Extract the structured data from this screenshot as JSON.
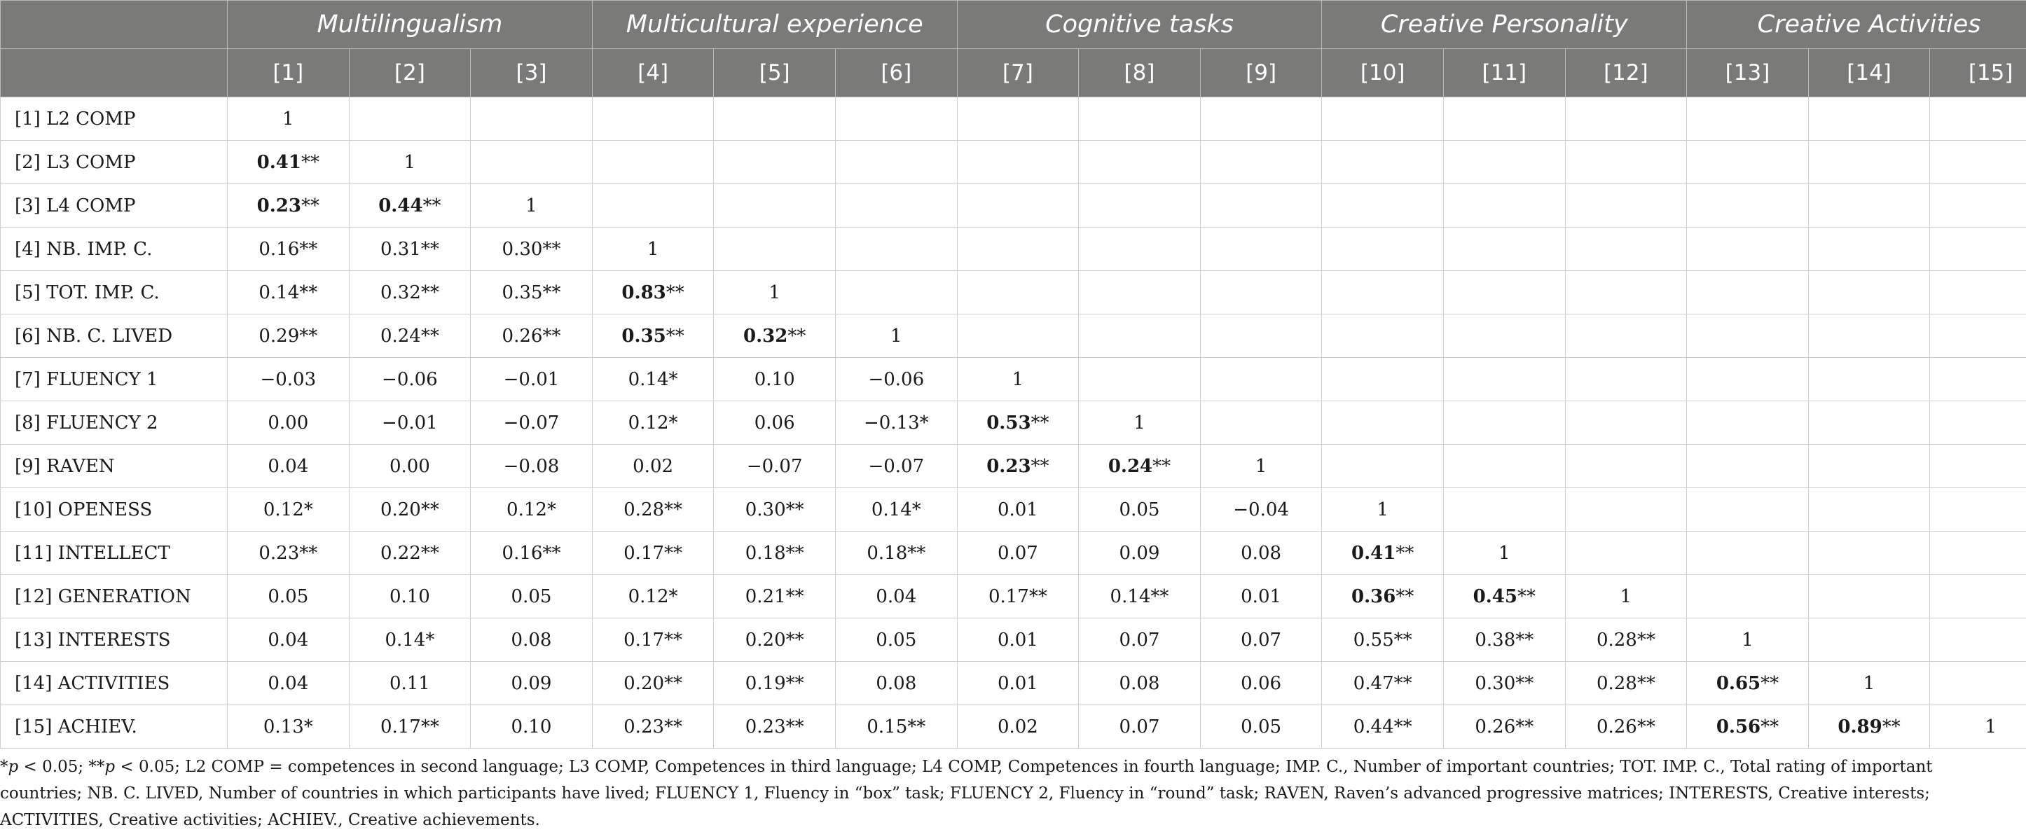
{
  "groups": [
    {
      "label": "Multilingualism",
      "span": 3
    },
    {
      "label": "Multicultural experience",
      "span": 3
    },
    {
      "label": "Cognitive tasks",
      "span": 3
    },
    {
      "label": "Creative Personality",
      "span": 3
    },
    {
      "label": "Creative Activities",
      "span": 3
    }
  ],
  "columns": [
    "[1]",
    "[2]",
    "[3]",
    "[4]",
    "[5]",
    "[6]",
    "[7]",
    "[8]",
    "[9]",
    "[10]",
    "[11]",
    "[12]",
    "[13]",
    "[14]",
    "[15]"
  ],
  "rows": [
    {
      "label": "[1] L2 COMP",
      "cells": [
        {
          "v": "1",
          "s": ""
        }
      ]
    },
    {
      "label": "[2] L3 COMP",
      "cells": [
        {
          "v": "0.41",
          "s": "**",
          "b": true
        },
        {
          "v": "1",
          "s": ""
        }
      ]
    },
    {
      "label": "[3] L4 COMP",
      "cells": [
        {
          "v": "0.23",
          "s": "**",
          "b": true
        },
        {
          "v": "0.44",
          "s": "**",
          "b": true
        },
        {
          "v": "1",
          "s": ""
        }
      ]
    },
    {
      "label": "[4] NB. IMP. C.",
      "cells": [
        {
          "v": "0.16",
          "s": "**"
        },
        {
          "v": "0.31",
          "s": "**"
        },
        {
          "v": "0.30",
          "s": "**"
        },
        {
          "v": "1",
          "s": ""
        }
      ]
    },
    {
      "label": "[5] TOT. IMP. C.",
      "cells": [
        {
          "v": "0.14",
          "s": "**"
        },
        {
          "v": "0.32",
          "s": "**"
        },
        {
          "v": "0.35",
          "s": "**"
        },
        {
          "v": "0.83",
          "s": "**",
          "b": true
        },
        {
          "v": "1",
          "s": ""
        }
      ]
    },
    {
      "label": "[6] NB. C. LIVED",
      "cells": [
        {
          "v": "0.29",
          "s": "**"
        },
        {
          "v": "0.24",
          "s": "**"
        },
        {
          "v": "0.26",
          "s": "**"
        },
        {
          "v": "0.35",
          "s": "**",
          "b": true
        },
        {
          "v": "0.32",
          "s": "**",
          "b": true
        },
        {
          "v": "1",
          "s": ""
        }
      ]
    },
    {
      "label": "[7] FLUENCY 1",
      "cells": [
        {
          "v": "−0.03",
          "s": ""
        },
        {
          "v": "−0.06",
          "s": ""
        },
        {
          "v": "−0.01",
          "s": ""
        },
        {
          "v": "0.14",
          "s": "*"
        },
        {
          "v": "0.10",
          "s": ""
        },
        {
          "v": "−0.06",
          "s": ""
        },
        {
          "v": "1",
          "s": ""
        }
      ]
    },
    {
      "label": "[8] FLUENCY 2",
      "cells": [
        {
          "v": "0.00",
          "s": ""
        },
        {
          "v": "−0.01",
          "s": ""
        },
        {
          "v": "−0.07",
          "s": ""
        },
        {
          "v": "0.12",
          "s": "*"
        },
        {
          "v": "0.06",
          "s": ""
        },
        {
          "v": "−0.13",
          "s": "*"
        },
        {
          "v": "0.53",
          "s": "**",
          "b": true
        },
        {
          "v": "1",
          "s": ""
        }
      ]
    },
    {
      "label": "[9] RAVEN",
      "cells": [
        {
          "v": "0.04",
          "s": ""
        },
        {
          "v": "0.00",
          "s": ""
        },
        {
          "v": "−0.08",
          "s": ""
        },
        {
          "v": "0.02",
          "s": ""
        },
        {
          "v": "−0.07",
          "s": ""
        },
        {
          "v": "−0.07",
          "s": ""
        },
        {
          "v": "0.23",
          "s": "**",
          "b": true
        },
        {
          "v": "0.24",
          "s": "**",
          "b": true
        },
        {
          "v": "1",
          "s": ""
        }
      ]
    },
    {
      "label": "[10] OPENESS",
      "cells": [
        {
          "v": "0.12",
          "s": "*"
        },
        {
          "v": "0.20",
          "s": "**"
        },
        {
          "v": "0.12",
          "s": "*"
        },
        {
          "v": "0.28",
          "s": "**"
        },
        {
          "v": "0.30",
          "s": "**"
        },
        {
          "v": "0.14",
          "s": "*"
        },
        {
          "v": "0.01",
          "s": ""
        },
        {
          "v": "0.05",
          "s": ""
        },
        {
          "v": "−0.04",
          "s": ""
        },
        {
          "v": "1",
          "s": ""
        }
      ]
    },
    {
      "label": "[11] INTELLECT",
      "cells": [
        {
          "v": "0.23",
          "s": "**"
        },
        {
          "v": "0.22",
          "s": "**"
        },
        {
          "v": "0.16",
          "s": "**"
        },
        {
          "v": "0.17",
          "s": "**"
        },
        {
          "v": "0.18",
          "s": "**"
        },
        {
          "v": "0.18",
          "s": "**"
        },
        {
          "v": "0.07",
          "s": ""
        },
        {
          "v": "0.09",
          "s": ""
        },
        {
          "v": "0.08",
          "s": ""
        },
        {
          "v": "0.41",
          "s": "**",
          "b": true
        },
        {
          "v": "1",
          "s": ""
        }
      ]
    },
    {
      "label": "[12] GENERATION",
      "cells": [
        {
          "v": "0.05",
          "s": ""
        },
        {
          "v": "0.10",
          "s": ""
        },
        {
          "v": "0.05",
          "s": ""
        },
        {
          "v": "0.12",
          "s": "*"
        },
        {
          "v": "0.21",
          "s": "**"
        },
        {
          "v": "0.04",
          "s": ""
        },
        {
          "v": "0.17",
          "s": "**"
        },
        {
          "v": "0.14",
          "s": "**"
        },
        {
          "v": "0.01",
          "s": ""
        },
        {
          "v": "0.36",
          "s": "**",
          "b": true
        },
        {
          "v": "0.45",
          "s": "**",
          "b": true
        },
        {
          "v": "1",
          "s": ""
        }
      ]
    },
    {
      "label": "[13] INTERESTS",
      "cells": [
        {
          "v": "0.04",
          "s": ""
        },
        {
          "v": "0.14",
          "s": "*"
        },
        {
          "v": "0.08",
          "s": ""
        },
        {
          "v": "0.17",
          "s": "**"
        },
        {
          "v": "0.20",
          "s": "**"
        },
        {
          "v": "0.05",
          "s": ""
        },
        {
          "v": "0.01",
          "s": ""
        },
        {
          "v": "0.07",
          "s": ""
        },
        {
          "v": "0.07",
          "s": ""
        },
        {
          "v": "0.55",
          "s": "**"
        },
        {
          "v": "0.38",
          "s": "**"
        },
        {
          "v": "0.28",
          "s": "**"
        },
        {
          "v": "1",
          "s": ""
        }
      ]
    },
    {
      "label": "[14] ACTIVITIES",
      "cells": [
        {
          "v": "0.04",
          "s": ""
        },
        {
          "v": "0.11",
          "s": ""
        },
        {
          "v": "0.09",
          "s": ""
        },
        {
          "v": "0.20",
          "s": "**"
        },
        {
          "v": "0.19",
          "s": "**"
        },
        {
          "v": "0.08",
          "s": ""
        },
        {
          "v": "0.01",
          "s": ""
        },
        {
          "v": "0.08",
          "s": ""
        },
        {
          "v": "0.06",
          "s": ""
        },
        {
          "v": "0.47",
          "s": "**"
        },
        {
          "v": "0.30",
          "s": "**"
        },
        {
          "v": "0.28",
          "s": "**"
        },
        {
          "v": "0.65",
          "s": "**",
          "b": true
        },
        {
          "v": "1",
          "s": ""
        }
      ]
    },
    {
      "label": "[15] ACHIEV.",
      "cells": [
        {
          "v": "0.13",
          "s": "*"
        },
        {
          "v": "0.17",
          "s": "**"
        },
        {
          "v": "0.10",
          "s": ""
        },
        {
          "v": "0.23",
          "s": "**"
        },
        {
          "v": "0.23",
          "s": "**"
        },
        {
          "v": "0.15",
          "s": "**"
        },
        {
          "v": "0.02",
          "s": ""
        },
        {
          "v": "0.07",
          "s": ""
        },
        {
          "v": "0.05",
          "s": ""
        },
        {
          "v": "0.44",
          "s": "**"
        },
        {
          "v": "0.26",
          "s": "**"
        },
        {
          "v": "0.26",
          "s": "**"
        },
        {
          "v": "0.56",
          "s": "**",
          "b": true
        },
        {
          "v": "0.89",
          "s": "**",
          "b": true
        },
        {
          "v": "1",
          "s": ""
        }
      ]
    }
  ],
  "footnote": {
    "sig1_symbol": "*",
    "sig1_p": "p",
    "sig1_rest": " < 0.05; ",
    "sig2_symbol": "**",
    "sig2_p": "p",
    "sig2_rest": " < 0.05; L2 COMP = competences in second language; L3 COMP, Competences in third language; L4 COMP, Competences in fourth language; IMP. C., Number of important countries; TOT. IMP. C., Total rating of important countries; NB. C. LIVED, Number of countries in which participants have lived; FLUENCY 1, Fluency in “box” task; FLUENCY 2, Fluency in “round” task; RAVEN, Raven’s advanced progressive matrices; INTERESTS, Creative interests; ACTIVITIES, Creative activities; ACHIEV., Creative achievements."
  },
  "colors": {
    "header_bg": "#7a7a79",
    "header_text": "#ffffff",
    "border": "#cfcfcf"
  }
}
